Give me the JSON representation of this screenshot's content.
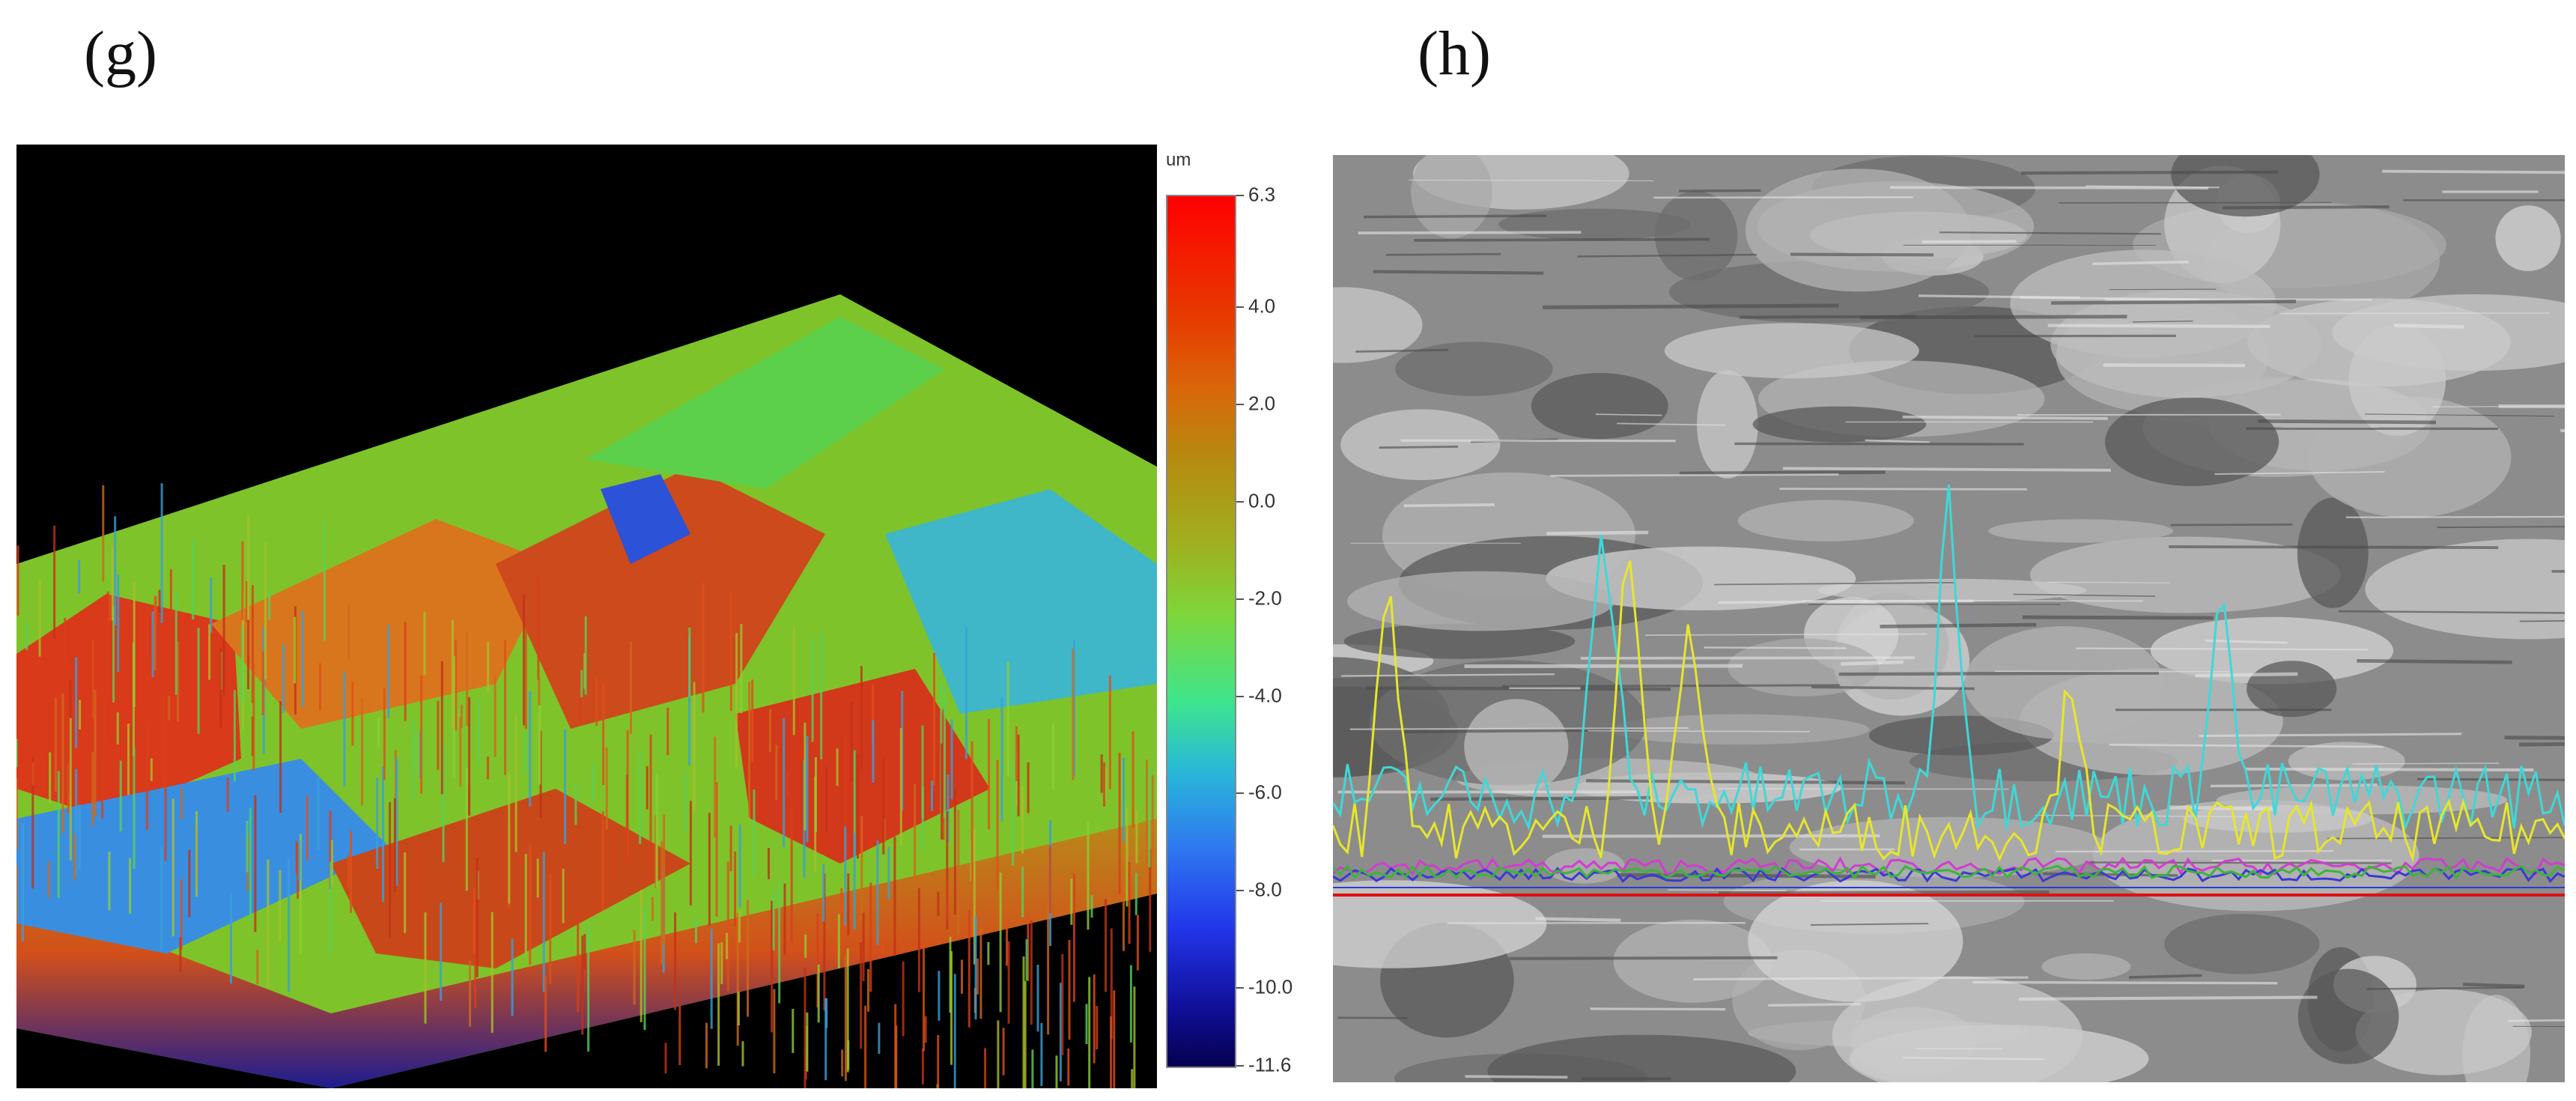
{
  "panels": {
    "g": {
      "label": "(g)"
    },
    "h": {
      "label": "(h)"
    }
  },
  "scale": {
    "unit": "um",
    "max": 6.3,
    "min": -11.6,
    "ticks": [
      "6.3",
      "4.0",
      "2.0",
      "0.0",
      "-2.0",
      "-4.0",
      "-6.0",
      "-8.0",
      "-10.0",
      "-11.6"
    ],
    "tick_values": [
      6.3,
      4.0,
      2.0,
      0.0,
      -2.0,
      -4.0,
      -6.0,
      -8.0,
      -10.0,
      -11.6
    ]
  },
  "colors": {
    "topo_background": "#000000",
    "sem_background": "#8c8c8c",
    "profile_cyan": "#3fd8d8",
    "profile_yellow": "#e6e62e",
    "profile_magenta": "#d23cd2",
    "profile_blue": "#3a3ad8",
    "profile_green": "#3bb53b",
    "baseline_red": "#e01010"
  }
}
